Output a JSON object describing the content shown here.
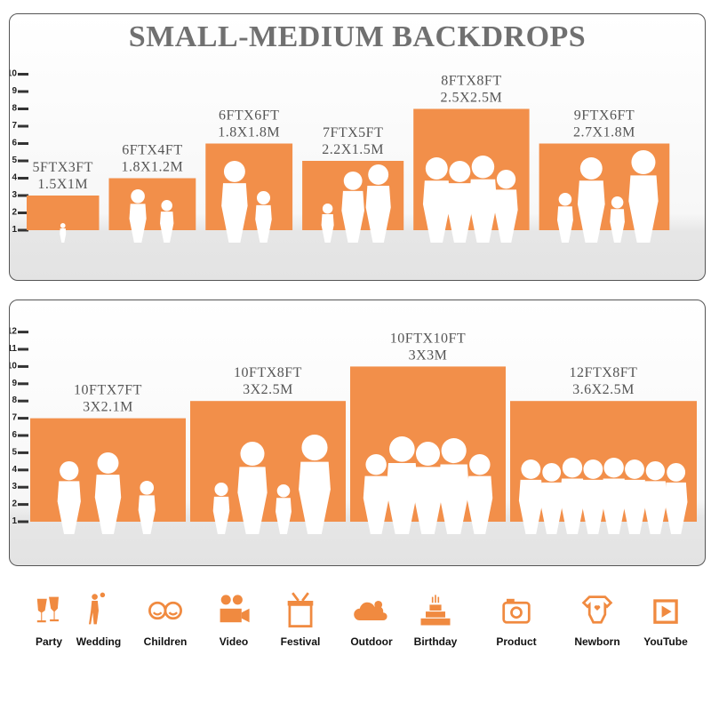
{
  "title": "SMALL-MEDIUM BACKDROPS",
  "colors": {
    "bar": "#F28F4A",
    "silhouette": "#FFFFFF",
    "icon": "#F08A40",
    "title": "#707070"
  },
  "panels": [
    {
      "axis_ticks": [
        "1",
        "2",
        "3",
        "4",
        "5",
        "6",
        "7",
        "8",
        "9",
        "10"
      ],
      "backdrops": [
        {
          "ft": "5FTX3FT",
          "m": "1.5X1M",
          "width_ft": 5,
          "height_ft": 3
        },
        {
          "ft": "6FTX4FT",
          "m": "1.8X1.2M",
          "width_ft": 6,
          "height_ft": 4
        },
        {
          "ft": "6FTX6FT",
          "m": "1.8X1.8M",
          "width_ft": 6,
          "height_ft": 6
        },
        {
          "ft": "7FTX5FT",
          "m": "2.2X1.5M",
          "width_ft": 7,
          "height_ft": 5
        },
        {
          "ft": "8FTX8FT",
          "m": "2.5X2.5M",
          "width_ft": 8,
          "height_ft": 8
        },
        {
          "ft": "9FTX6FT",
          "m": "2.7X1.8M",
          "width_ft": 9,
          "height_ft": 6
        }
      ]
    },
    {
      "axis_ticks": [
        "1",
        "2",
        "3",
        "4",
        "5",
        "6",
        "7",
        "8",
        "9",
        "10",
        "11",
        "12"
      ],
      "backdrops": [
        {
          "ft": "10FTX7FT",
          "m": "3X2.1M",
          "width_ft": 10,
          "height_ft": 7
        },
        {
          "ft": "10FTX8FT",
          "m": "3X2.5M",
          "width_ft": 10,
          "height_ft": 8
        },
        {
          "ft": "10FTX10FT",
          "m": "3X3M",
          "width_ft": 10,
          "height_ft": 10
        },
        {
          "ft": "12FTX8FT",
          "m": "3.6X2.5M",
          "width_ft": 12,
          "height_ft": 8
        }
      ]
    }
  ],
  "uses": [
    {
      "label": "Party",
      "icon": "champagne-glasses-icon"
    },
    {
      "label": "Wedding",
      "icon": "wedding-couple-icon"
    },
    {
      "label": "Children",
      "icon": "children-faces-icon"
    },
    {
      "label": "Video",
      "icon": "video-camera-icon"
    },
    {
      "label": "Festival",
      "icon": "gift-box-icon"
    },
    {
      "label": "Outdoor",
      "icon": "cloud-icon"
    },
    {
      "label": "Birthday",
      "icon": "birthday-cake-icon"
    },
    {
      "label": "Product",
      "icon": "camera-icon"
    },
    {
      "label": "Newborn",
      "icon": "baby-onesie-icon"
    },
    {
      "label": "YouTube",
      "icon": "play-button-icon"
    }
  ]
}
